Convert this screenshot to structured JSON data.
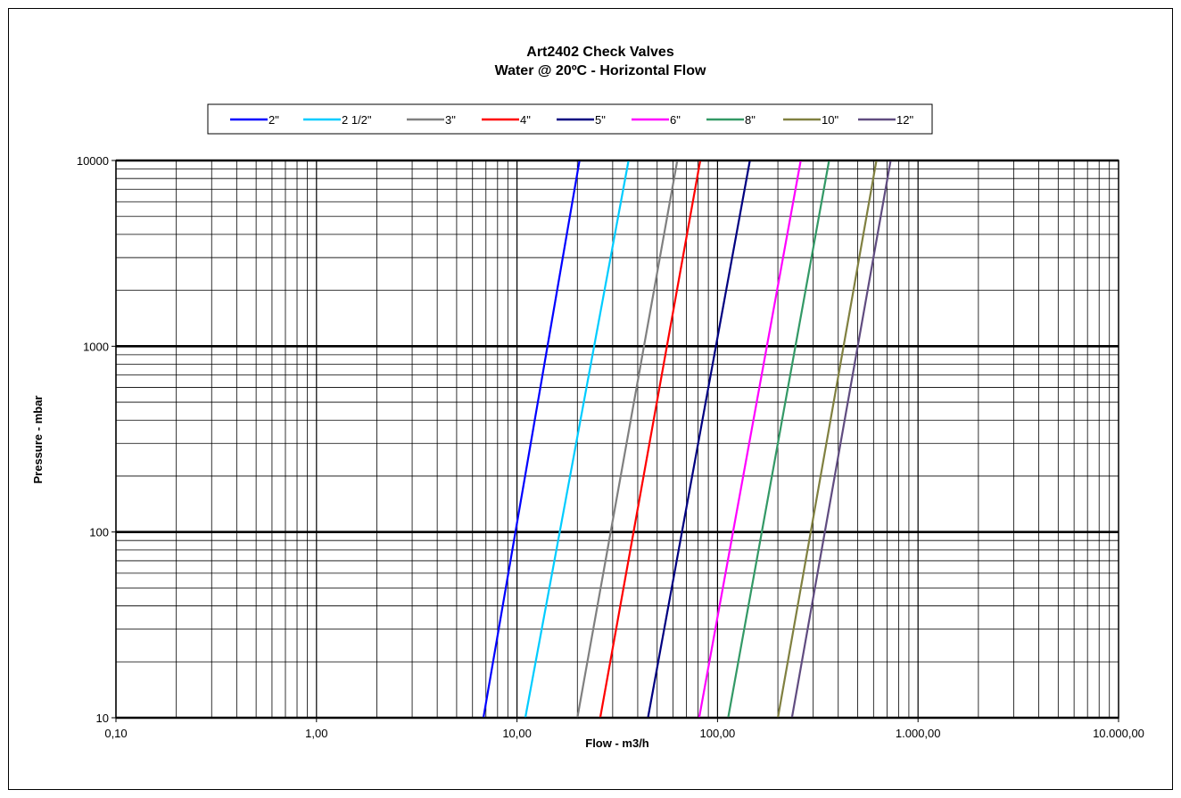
{
  "chart_data": {
    "type": "line",
    "title": "Art2402 Check Valves",
    "subtitle": "Water @ 20ºC - Horizontal Flow",
    "xlabel": "Flow - m3/h",
    "ylabel": "Pressure - mbar",
    "xscale": "log",
    "yscale": "log",
    "xlim": [
      0.1,
      10000
    ],
    "ylim": [
      10,
      10000
    ],
    "xticks": [
      "0,10",
      "1,00",
      "10,00",
      "100,00",
      "1.000,00",
      "10.000,00"
    ],
    "yticks": [
      "10",
      "100",
      "1000",
      "10000"
    ],
    "grid": true,
    "legend_position": "top",
    "series": [
      {
        "name": "2\"",
        "color": "#0000ff",
        "x": [
          6.8,
          20.5
        ],
        "y": [
          10,
          10000
        ]
      },
      {
        "name": "2 1/2\"",
        "color": "#00ccff",
        "x": [
          11.0,
          36.0
        ],
        "y": [
          10,
          10000
        ]
      },
      {
        "name": "3\"",
        "color": "#808080",
        "x": [
          20.0,
          63.0
        ],
        "y": [
          10,
          10000
        ]
      },
      {
        "name": "4\"",
        "color": "#ff0000",
        "x": [
          26.0,
          82.0
        ],
        "y": [
          10,
          10000
        ]
      },
      {
        "name": "5\"",
        "color": "#000080",
        "x": [
          45.0,
          145.0
        ],
        "y": [
          10,
          10000
        ]
      },
      {
        "name": "6\"",
        "color": "#ff00ff",
        "x": [
          81.0,
          260.0
        ],
        "y": [
          10,
          10000
        ]
      },
      {
        "name": "8\"",
        "color": "#339966",
        "x": [
          113.0,
          360.0
        ],
        "y": [
          10,
          10000
        ]
      },
      {
        "name": "10\"",
        "color": "#808040",
        "x": [
          200.0,
          620.0
        ],
        "y": [
          10,
          10000
        ]
      },
      {
        "name": "12\"",
        "color": "#604c80",
        "x": [
          235.0,
          730.0
        ],
        "y": [
          10,
          10000
        ]
      }
    ]
  }
}
